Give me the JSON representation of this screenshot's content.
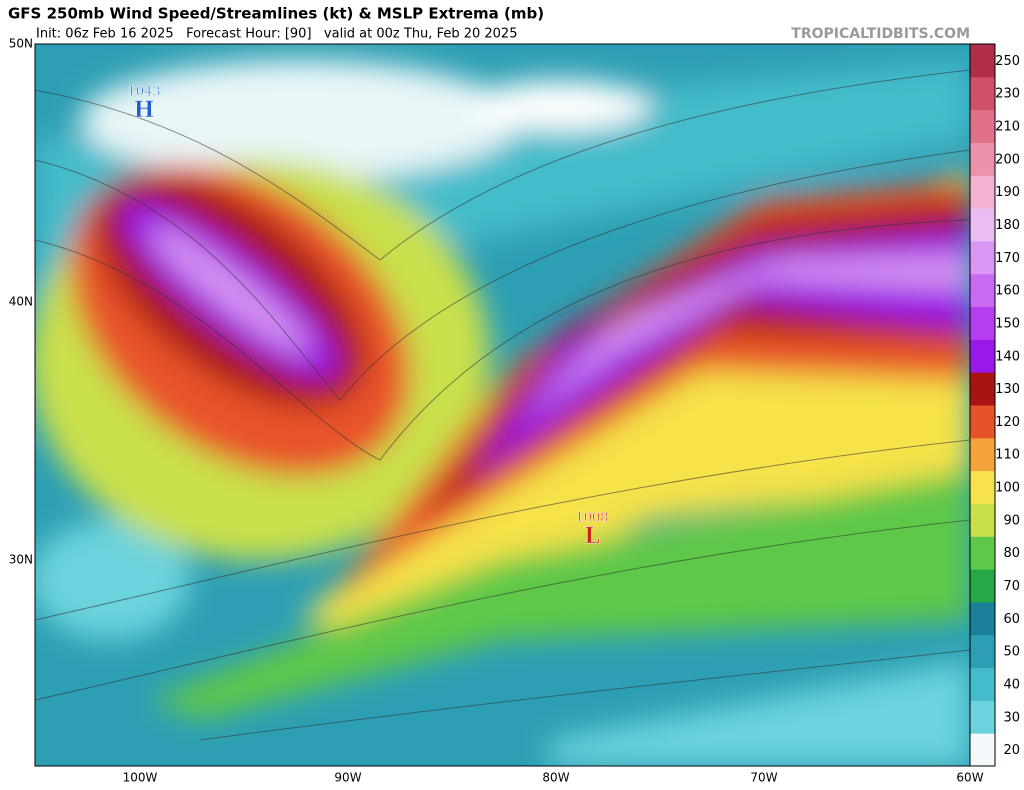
{
  "header": {
    "title": "GFS 250mb Wind Speed/Streamlines (kt) & MSLP Extrema (mb)",
    "subtitle": "Init: 06z Feb 16 2025   Forecast Hour: [90]   valid at 00z Thu, Feb 20 2025",
    "watermark": "TROPICALTIDBITS.COM"
  },
  "latitude_labels": [
    "50N",
    "40N",
    "30N"
  ],
  "longitude_labels": [
    "100W",
    "90W",
    "80W",
    "70W",
    "60W"
  ],
  "pressure_centers": [
    {
      "symbol": "H",
      "pressure": "1043",
      "color": "#1f5fd0"
    },
    {
      "symbol": "L",
      "pressure": "1008",
      "color": "#d02020"
    }
  ],
  "colorbar": {
    "labels": [
      20,
      30,
      40,
      50,
      60,
      70,
      80,
      90,
      100,
      110,
      120,
      130,
      140,
      150,
      160,
      170,
      180,
      190,
      200,
      210,
      230,
      250
    ],
    "colors": [
      "#f4fafc",
      "#6ad3dc",
      "#45bccb",
      "#2d9fb4",
      "#1a7f99",
      "#27a847",
      "#5ec84a",
      "#c9e04c",
      "#f6e24a",
      "#f5a33b",
      "#e8522b",
      "#a81414",
      "#9a18e8",
      "#b43ef0",
      "#c86af2",
      "#d996f2",
      "#e9bdf2",
      "#f3b2cf",
      "#ea93ab",
      "#e07189",
      "#d04f69",
      "#b02e48"
    ]
  }
}
